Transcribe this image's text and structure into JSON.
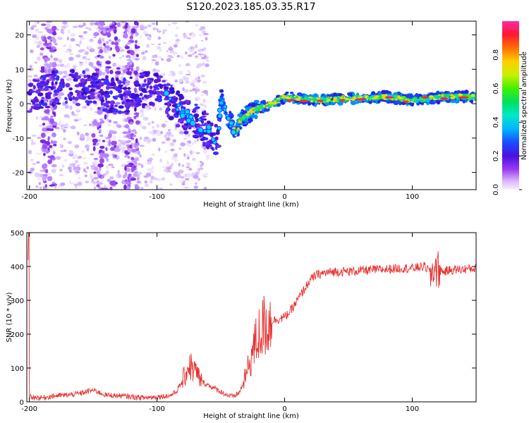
{
  "title": "S120.2023.185.03.35.R17",
  "colors": {
    "snr_line": "#e83030",
    "axis": "#000000",
    "background": "#ffffff"
  },
  "chart_data": [
    {
      "type": "heatmap",
      "xlabel": "Height of straight line (km)",
      "ylabel": "Frequency (Hz)",
      "xlim": [
        -202,
        150
      ],
      "ylim": [
        -25,
        24
      ],
      "x_ticks": [
        -200,
        -100,
        0,
        100
      ],
      "y_ticks": [
        20,
        10,
        0,
        -10,
        -20
      ],
      "colorbar": {
        "label": "Normalized spectral amplitude",
        "range": [
          0,
          1
        ],
        "ticks": [
          "0.0",
          "0.2",
          "0.4",
          "0.6",
          "0.8"
        ],
        "colormap": "rainbow (white-lavender, purple, blue, cyan, green, yellow, orange, red, magenta)"
      },
      "ridge": [
        {
          "x": -200,
          "y": 2
        },
        {
          "x": -175,
          "y": 5
        },
        {
          "x": -150,
          "y": 4
        },
        {
          "x": -130,
          "y": 2
        },
        {
          "x": -100,
          "y": 5
        },
        {
          "x": -90,
          "y": 1
        },
        {
          "x": -80,
          "y": -3
        },
        {
          "x": -70,
          "y": -5
        },
        {
          "x": -60,
          "y": -8
        },
        {
          "x": -52,
          "y": -11
        },
        {
          "x": -50,
          "y": 2
        },
        {
          "x": -45,
          "y": -3
        },
        {
          "x": -38,
          "y": -9
        },
        {
          "x": -35,
          "y": -5
        },
        {
          "x": -25,
          "y": -2
        },
        {
          "x": -10,
          "y": 0
        },
        {
          "x": 0,
          "y": 2
        },
        {
          "x": 25,
          "y": 1
        },
        {
          "x": 50,
          "y": 1.5
        },
        {
          "x": 80,
          "y": 2
        },
        {
          "x": 100,
          "y": 1
        },
        {
          "x": 125,
          "y": 2
        },
        {
          "x": 150,
          "y": 2
        }
      ]
    },
    {
      "type": "line",
      "xlabel": "Height of straight line (km)",
      "ylabel": "SNR (10 * v/v)",
      "xlim": [
        -202,
        150
      ],
      "ylim": [
        0,
        500
      ],
      "x_ticks": [
        -200,
        -100,
        0,
        100
      ],
      "y_ticks": [
        0,
        100,
        200,
        300,
        400,
        500
      ],
      "x": [
        -200,
        -190,
        -180,
        -170,
        -160,
        -150,
        -140,
        -130,
        -120,
        -110,
        -100,
        -90,
        -85,
        -80,
        -75,
        -70,
        -65,
        -60,
        -55,
        -50,
        -45,
        -40,
        -35,
        -30,
        -25,
        -20,
        -15,
        -10,
        -5,
        0,
        5,
        10,
        15,
        20,
        25,
        30,
        40,
        50,
        60,
        70,
        80,
        90,
        100,
        110,
        115,
        118,
        120,
        125,
        130,
        140,
        150
      ],
      "values": [
        15,
        12,
        18,
        20,
        25,
        35,
        20,
        18,
        15,
        12,
        15,
        18,
        30,
        60,
        110,
        90,
        60,
        50,
        40,
        30,
        20,
        15,
        30,
        80,
        150,
        200,
        230,
        240,
        245,
        250,
        270,
        300,
        330,
        360,
        375,
        380,
        385,
        385,
        388,
        390,
        392,
        395,
        395,
        400,
        380,
        400,
        390,
        385,
        390,
        392,
        395
      ]
    }
  ]
}
